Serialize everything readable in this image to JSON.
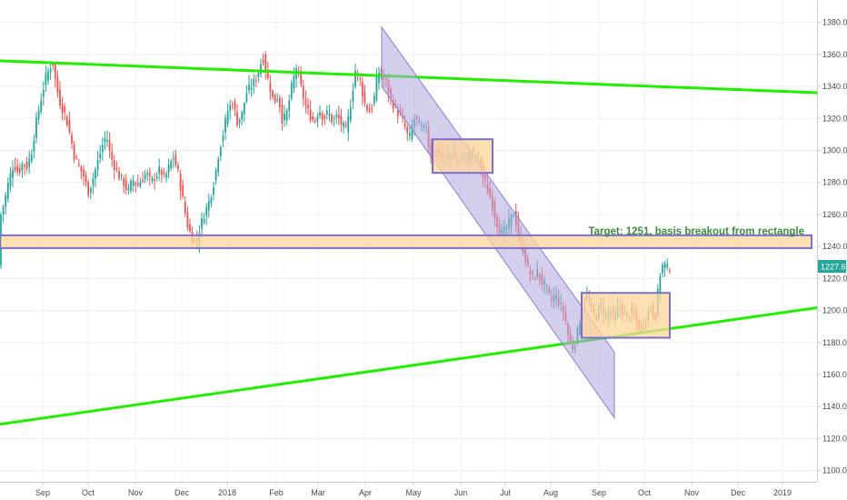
{
  "chart_data": {
    "type": "candlestick",
    "x_tick_labels": [
      "Sep",
      "Oct",
      "Nov",
      "Dec",
      "2018",
      "Feb",
      "Mar",
      "Apr",
      "May",
      "Jun",
      "Jul",
      "Aug",
      "Sep",
      "Oct",
      "Nov",
      "Dec",
      "2019"
    ],
    "y_tick_labels": [
      "1380.00",
      "1360.00",
      "1340.00",
      "1320.00",
      "1300.00",
      "1280.00",
      "1260.00",
      "1240.00",
      "1220.00",
      "1200.00",
      "1180.00",
      "1160.00",
      "1140.00",
      "1120.00",
      "1100.00"
    ],
    "y_ticks": [
      1380,
      1360,
      1340,
      1320,
      1300,
      1280,
      1260,
      1240,
      1220,
      1200,
      1180,
      1160,
      1140,
      1120,
      1100
    ],
    "ylim": [
      1093,
      1394
    ],
    "grid": true,
    "last_price": "1227.60",
    "last_price_value": 1227.6,
    "colors": {
      "up": "#26a69a",
      "down": "#ef5350",
      "trendline": "#22ee00",
      "channel_fill": "#b3a7e0",
      "channel_stroke": "#8a7fd0",
      "box_fill": "#ffd59a",
      "box_stroke": "#7a6fd0",
      "annotation_text": "#3d8b3d",
      "price_label_bg": "#26a69a"
    },
    "annotation": "Target: 1251, basis breakout from rectangle",
    "price_path": [
      [
        0,
        1258
      ],
      [
        5,
        1268
      ],
      [
        10,
        1282
      ],
      [
        15,
        1292
      ],
      [
        20,
        1286
      ],
      [
        25,
        1292
      ],
      [
        30,
        1290
      ],
      [
        35,
        1300
      ],
      [
        40,
        1318
      ],
      [
        45,
        1332
      ],
      [
        50,
        1345
      ],
      [
        55,
        1352
      ],
      [
        58,
        1355
      ],
      [
        62,
        1340
      ],
      [
        67,
        1328
      ],
      [
        72,
        1322
      ],
      [
        77,
        1310
      ],
      [
        82,
        1296
      ],
      [
        87,
        1290
      ],
      [
        92,
        1284
      ],
      [
        97,
        1274
      ],
      [
        102,
        1282
      ],
      [
        107,
        1292
      ],
      [
        112,
        1302
      ],
      [
        117,
        1310
      ],
      [
        121,
        1298
      ],
      [
        126,
        1290
      ],
      [
        131,
        1284
      ],
      [
        136,
        1280
      ],
      [
        141,
        1274
      ],
      [
        146,
        1282
      ],
      [
        151,
        1278
      ],
      [
        156,
        1282
      ],
      [
        161,
        1286
      ],
      [
        166,
        1280
      ],
      [
        171,
        1284
      ],
      [
        176,
        1288
      ],
      [
        181,
        1282
      ],
      [
        186,
        1290
      ],
      [
        191,
        1296
      ],
      [
        196,
        1286
      ],
      [
        201,
        1270
      ],
      [
        206,
        1254
      ],
      [
        211,
        1246
      ],
      [
        216,
        1242
      ],
      [
        221,
        1254
      ],
      [
        226,
        1262
      ],
      [
        231,
        1270
      ],
      [
        236,
        1282
      ],
      [
        241,
        1300
      ],
      [
        246,
        1312
      ],
      [
        251,
        1326
      ],
      [
        256,
        1330
      ],
      [
        261,
        1318
      ],
      [
        266,
        1322
      ],
      [
        271,
        1336
      ],
      [
        276,
        1340
      ],
      [
        281,
        1344
      ],
      [
        286,
        1352
      ],
      [
        289,
        1360
      ],
      [
        293,
        1348
      ],
      [
        297,
        1340
      ],
      [
        301,
        1330
      ],
      [
        306,
        1334
      ],
      [
        311,
        1318
      ],
      [
        316,
        1324
      ],
      [
        321,
        1340
      ],
      [
        326,
        1352
      ],
      [
        331,
        1340
      ],
      [
        336,
        1328
      ],
      [
        341,
        1322
      ],
      [
        346,
        1318
      ],
      [
        351,
        1326
      ],
      [
        356,
        1320
      ],
      [
        361,
        1324
      ],
      [
        366,
        1318
      ],
      [
        371,
        1322
      ],
      [
        376,
        1316
      ],
      [
        381,
        1312
      ],
      [
        386,
        1330
      ],
      [
        391,
        1350
      ],
      [
        396,
        1344
      ],
      [
        401,
        1330
      ],
      [
        406,
        1324
      ],
      [
        411,
        1330
      ],
      [
        416,
        1350
      ],
      [
        420,
        1346
      ],
      [
        425,
        1342
      ],
      [
        430,
        1332
      ],
      [
        435,
        1326
      ],
      [
        440,
        1322
      ],
      [
        445,
        1316
      ],
      [
        450,
        1306
      ],
      [
        455,
        1320
      ],
      [
        460,
        1318
      ],
      [
        465,
        1312
      ],
      [
        469,
        1316
      ],
      [
        473,
        1296
      ],
      [
        478,
        1300
      ],
      [
        483,
        1298
      ],
      [
        488,
        1294
      ],
      [
        493,
        1296
      ],
      [
        498,
        1298
      ],
      [
        503,
        1292
      ],
      [
        508,
        1296
      ],
      [
        513,
        1294
      ],
      [
        518,
        1300
      ],
      [
        523,
        1296
      ],
      [
        527,
        1296
      ],
      [
        531,
        1284
      ],
      [
        536,
        1276
      ],
      [
        541,
        1268
      ],
      [
        546,
        1256
      ],
      [
        551,
        1248
      ],
      [
        556,
        1250
      ],
      [
        561,
        1256
      ],
      [
        566,
        1262
      ],
      [
        571,
        1244
      ],
      [
        576,
        1238
      ],
      [
        581,
        1226
      ],
      [
        586,
        1220
      ],
      [
        591,
        1224
      ],
      [
        596,
        1218
      ],
      [
        601,
        1214
      ],
      [
        606,
        1206
      ],
      [
        611,
        1210
      ],
      [
        616,
        1204
      ],
      [
        621,
        1198
      ],
      [
        626,
        1182
      ],
      [
        631,
        1176
      ],
      [
        636,
        1188
      ],
      [
        641,
        1204
      ],
      [
        646,
        1208
      ],
      [
        651,
        1200
      ],
      [
        656,
        1196
      ],
      [
        661,
        1204
      ],
      [
        666,
        1196
      ],
      [
        671,
        1200
      ],
      [
        676,
        1194
      ],
      [
        681,
        1204
      ],
      [
        686,
        1198
      ],
      [
        691,
        1196
      ],
      [
        696,
        1200
      ],
      [
        701,
        1192
      ],
      [
        706,
        1188
      ],
      [
        711,
        1196
      ],
      [
        716,
        1202
      ],
      [
        721,
        1196
      ],
      [
        726,
        1222
      ],
      [
        730,
        1230
      ],
      [
        734,
        1226
      ],
      [
        738,
        1228
      ]
    ],
    "trendlines": [
      {
        "from": [
          0,
          1356
        ],
        "to": [
          902,
          1336
        ]
      },
      {
        "from": [
          0,
          1129
        ],
        "to": [
          902,
          1202
        ]
      }
    ],
    "channel": {
      "top_left": [
        420,
        1377
      ],
      "top_right": [
        676,
        1174
      ],
      "bottom_right": [
        676,
        1133
      ],
      "bottom_left": [
        420,
        1340
      ]
    },
    "boxes": [
      {
        "x0": 0,
        "x1": 893,
        "y_top": 1247,
        "y_bottom": 1239
      },
      {
        "x0": 476,
        "x1": 542,
        "y_top": 1307,
        "y_bottom": 1286
      },
      {
        "x0": 640,
        "x1": 737,
        "y_top": 1211,
        "y_bottom": 1183
      }
    ]
  }
}
